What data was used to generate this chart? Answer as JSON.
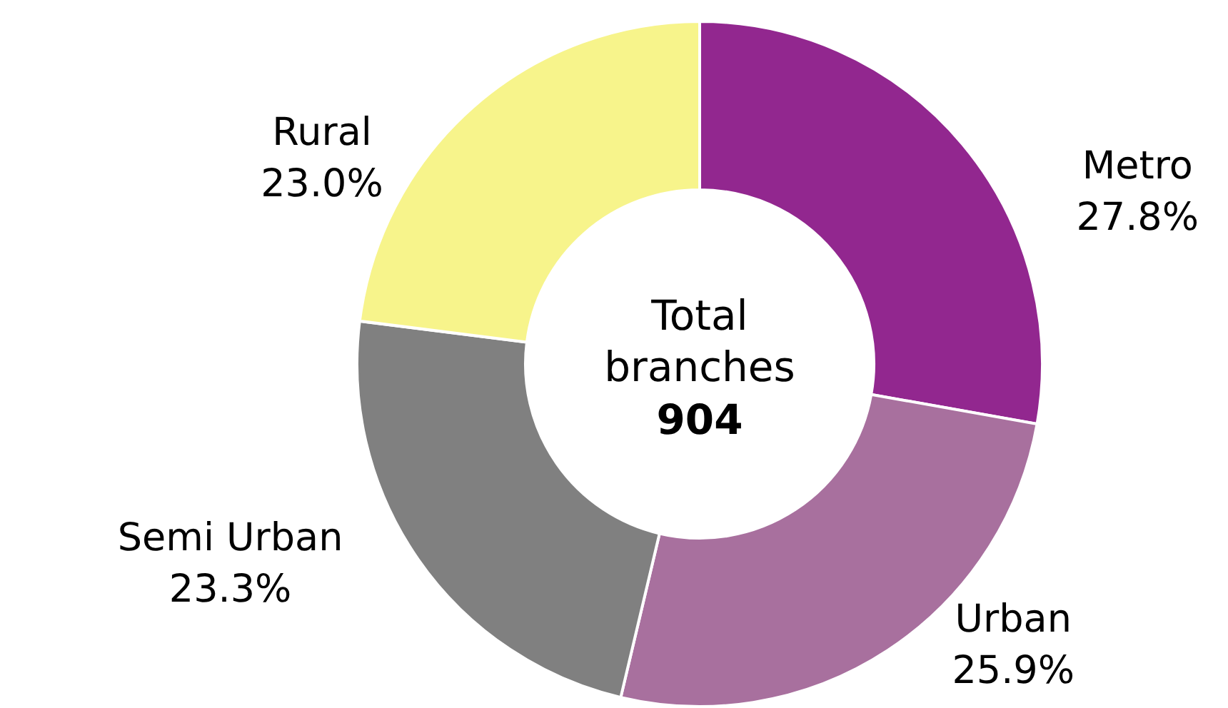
{
  "chart_data": {
    "type": "donut",
    "categories": [
      "Metro",
      "Urban",
      "Semi Urban",
      "Rural"
    ],
    "values": [
      27.8,
      25.9,
      23.3,
      23.0
    ],
    "value_labels": [
      "27.8%",
      "25.9%",
      "23.3%",
      "23.0%"
    ],
    "colors": [
      "#92278f",
      "#a8709e",
      "#808080",
      "#f7f48b"
    ],
    "annotations": [
      "Total branches",
      "904"
    ]
  }
}
